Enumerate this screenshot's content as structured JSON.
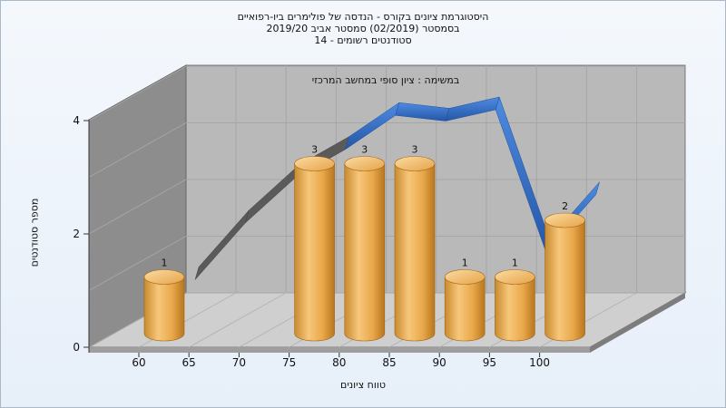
{
  "title_lines": [
    "היסטוגרמת ציונים בקורס - הנדסה של פולימרים ביו-רפואיים",
    "בסמסטר (02/2019) סמסטר אביב 2019/20",
    "סטודנטים רשומים - 14"
  ],
  "chart_data": {
    "type": "bar",
    "title": "היסטוגרמת ציונים בקורס - הנדסה של פולימרים ביו-רפואיים",
    "subtitle": "במשימה : ציון סופי במחשב המרכזי",
    "xlabel": "טווח ציונים",
    "ylabel": "מספר סטודנטים",
    "x_ticks": [
      "60",
      "65",
      "70",
      "75",
      "80",
      "85",
      "90",
      "95",
      "100"
    ],
    "y_ticks": [
      "0",
      "2",
      "4"
    ],
    "ylim": [
      0,
      4
    ],
    "bars": [
      {
        "x": "60",
        "value": 1
      },
      {
        "x": "75",
        "value": 3
      },
      {
        "x": "80",
        "value": 3
      },
      {
        "x": "85",
        "value": 3
      },
      {
        "x": "90",
        "value": 1
      },
      {
        "x": "95",
        "value": 1
      },
      {
        "x": "100",
        "value": 2
      }
    ],
    "trend_line": {
      "x": [
        "60",
        "65",
        "70",
        "75",
        "80",
        "85",
        "90",
        "95",
        "100"
      ],
      "y": [
        0.6,
        1.6,
        2.4,
        2.9,
        3.5,
        3.4,
        3.6,
        1.1,
        2.1
      ]
    },
    "grid": true,
    "style": "3d",
    "colors": {
      "bar": "#f2b45c",
      "trend_front": "#3a78d0",
      "trend_back": "#5a5a5a",
      "wall": "#b8b8b8",
      "side_wall": "#8c8c8c"
    }
  }
}
